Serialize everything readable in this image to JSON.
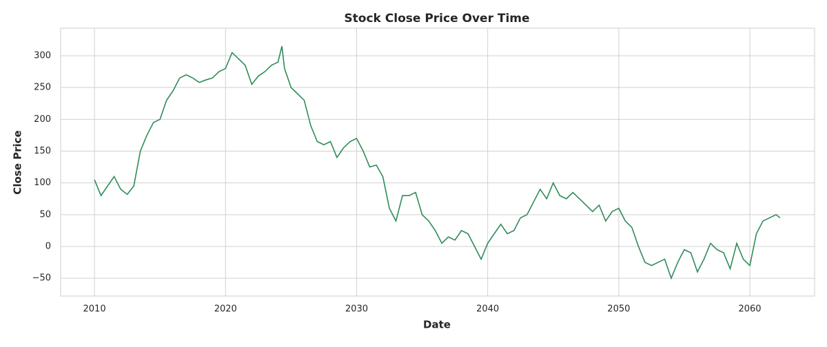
{
  "chart_data": {
    "type": "line",
    "title": "Stock Close Price Over Time",
    "xlabel": "Date",
    "ylabel": "Close Price",
    "x": [
      2010,
      2010.5,
      2011,
      2011.5,
      2012,
      2012.5,
      2013,
      2013.5,
      2014,
      2014.5,
      2015,
      2015.5,
      2016,
      2016.5,
      2017,
      2017.5,
      2018,
      2018.5,
      2019,
      2019.5,
      2020,
      2020.5,
      2021,
      2021.5,
      2022,
      2022.5,
      2023,
      2023.5,
      2024,
      2024.3,
      2024.5,
      2025,
      2025.5,
      2026,
      2026.5,
      2027,
      2027.5,
      2028,
      2028.5,
      2029,
      2029.5,
      2030,
      2030.5,
      2031,
      2031.5,
      2032,
      2032.5,
      2033,
      2033.5,
      2034,
      2034.5,
      2035,
      2035.5,
      2036,
      2036.5,
      2037,
      2037.5,
      2038,
      2038.5,
      2039,
      2039.5,
      2040,
      2040.5,
      2041,
      2041.5,
      2042,
      2042.5,
      2043,
      2043.5,
      2044,
      2044.5,
      2045,
      2045.5,
      2046,
      2046.5,
      2047,
      2047.5,
      2048,
      2048.5,
      2049,
      2049.5,
      2050,
      2050.5,
      2051,
      2051.5,
      2052,
      2052.5,
      2053,
      2053.5,
      2054,
      2054.5,
      2055,
      2055.5,
      2056,
      2056.5,
      2057,
      2057.5,
      2058,
      2058.5,
      2059,
      2059.5,
      2060,
      2060.5,
      2061,
      2061.5,
      2062,
      2062.3
    ],
    "series": [
      {
        "name": "Close",
        "color": "#2e8b57",
        "values": [
          105,
          80,
          95,
          110,
          90,
          82,
          95,
          150,
          175,
          195,
          200,
          230,
          245,
          265,
          270,
          265,
          258,
          262,
          265,
          275,
          280,
          305,
          295,
          285,
          255,
          268,
          275,
          285,
          290,
          315,
          280,
          250,
          240,
          230,
          190,
          165,
          160,
          165,
          140,
          155,
          165,
          170,
          150,
          125,
          128,
          110,
          60,
          40,
          80,
          80,
          85,
          50,
          40,
          25,
          5,
          15,
          10,
          25,
          20,
          0,
          -20,
          5,
          20,
          35,
          20,
          25,
          45,
          50,
          70,
          90,
          75,
          100,
          80,
          75,
          85,
          75,
          65,
          55,
          65,
          40,
          55,
          60,
          40,
          30,
          0,
          -25,
          -30,
          -25,
          -20,
          -50,
          -25,
          -5,
          -10,
          -40,
          -20,
          5,
          -5,
          -10,
          -35,
          5,
          -20,
          -30,
          20,
          40,
          45,
          50,
          45
        ]
      }
    ],
    "xlim": [
      2007.42,
      2064.94
    ],
    "ylim": [
      -78,
      343.3
    ],
    "xticks": [
      2010,
      2020,
      2030,
      2040,
      2050,
      2060
    ],
    "yticks": [
      {
        "value": -50,
        "label": "−50"
      },
      0,
      50,
      100,
      150,
      200,
      250,
      300
    ],
    "grid": true
  }
}
